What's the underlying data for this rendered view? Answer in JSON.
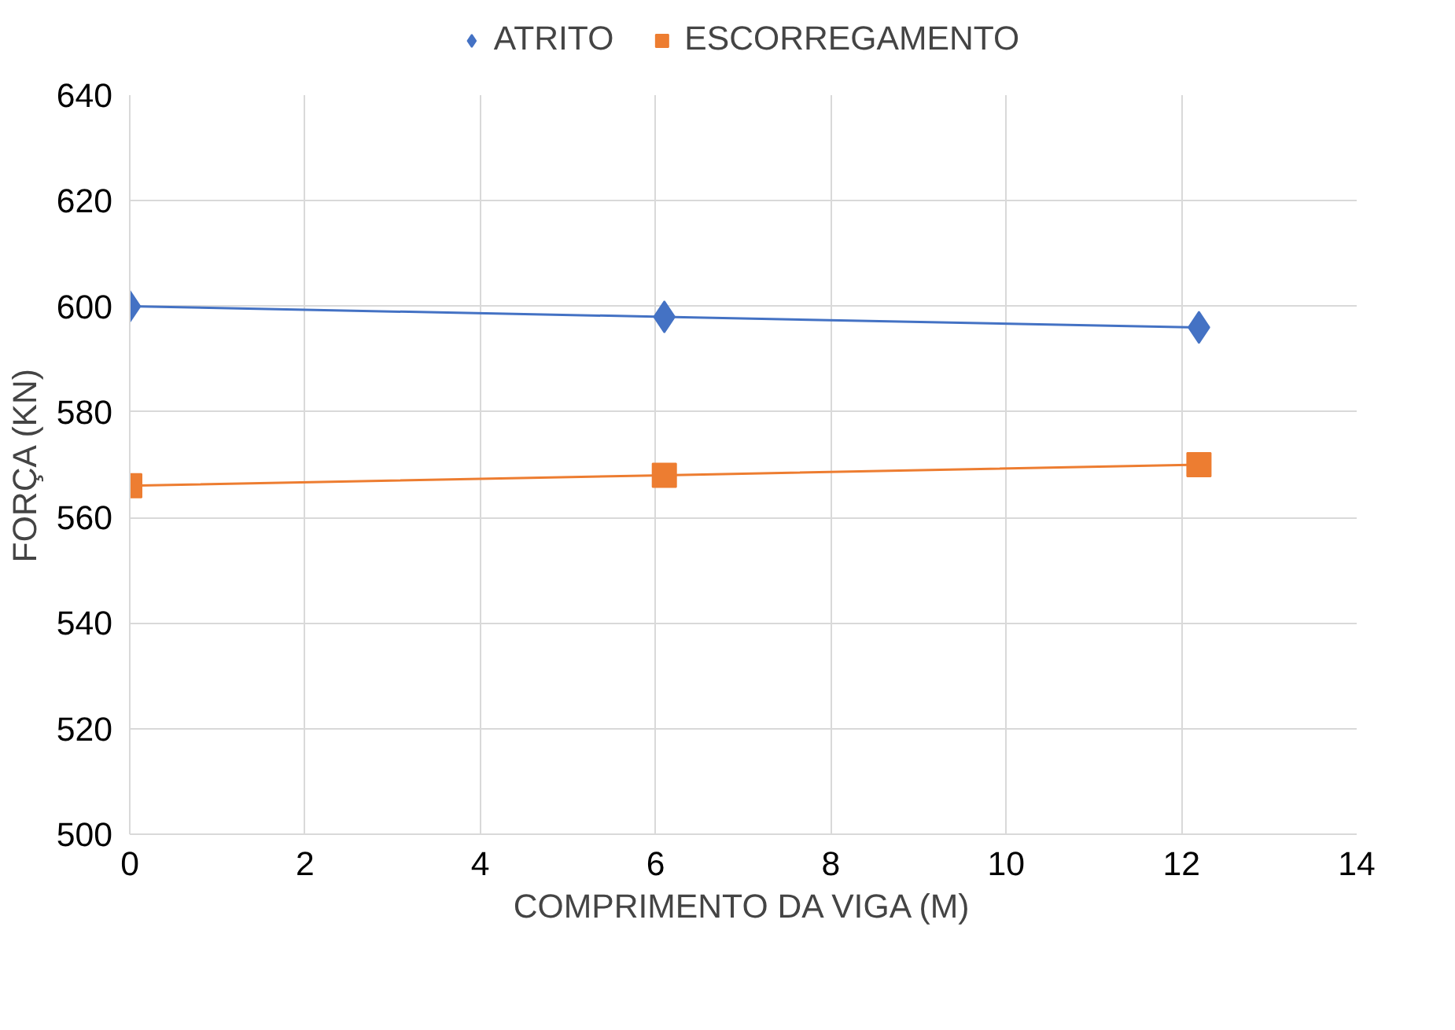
{
  "chart_data": {
    "type": "line",
    "xlabel": "COMPRIMENTO DA VIGA (M)",
    "ylabel": "FORÇA (KN)",
    "x": [
      0,
      6.1,
      12.2
    ],
    "series": [
      {
        "name": "ATRITO",
        "color": "#4472c4",
        "values": [
          600,
          598,
          596
        ],
        "marker": "diamond"
      },
      {
        "name": "ESCORREGAMENTO",
        "color": "#ed7d31",
        "values": [
          566,
          568,
          570
        ],
        "marker": "square"
      }
    ],
    "xlim": [
      0,
      14
    ],
    "xticks": [
      0,
      2,
      4,
      6,
      8,
      10,
      12,
      14
    ],
    "ylim": [
      500,
      640
    ],
    "yticks": [
      500,
      520,
      540,
      560,
      580,
      600,
      620,
      640
    ],
    "grid": true,
    "legend": "top",
    "line_style": "solid"
  }
}
